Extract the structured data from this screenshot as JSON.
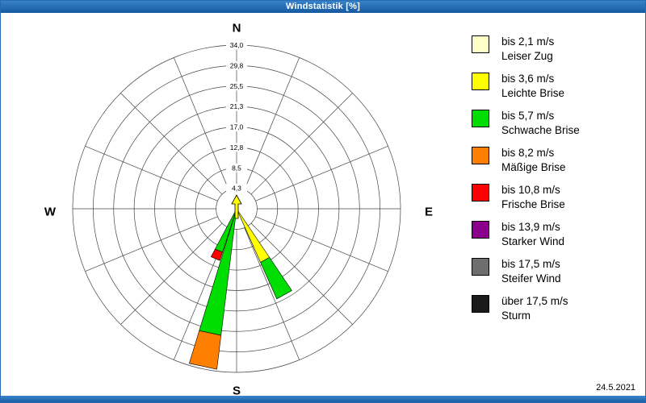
{
  "window": {
    "title": "Windstatistik [%]"
  },
  "date": "24.5.2021",
  "compass": {
    "north": "N",
    "east": "E",
    "south": "S",
    "west": "W"
  },
  "chart_data": {
    "type": "wind-rose",
    "title": "Windstatistik [%]",
    "unit": "%",
    "axis_max": 34.0,
    "ring_values": [
      4.3,
      8.5,
      12.8,
      17.0,
      21.3,
      25.5,
      29.8,
      34.0
    ],
    "ring_labels": [
      "4,3",
      "8,5",
      "12,8",
      "17,0",
      "21,3",
      "25,5",
      "29,8",
      "34,0"
    ],
    "grid_sectors": 16,
    "petal_half_width_deg": 5,
    "legend_position": "right",
    "speed_classes": [
      {
        "label": "bis 2,1 m/s",
        "name": "Leiser Zug",
        "color": "#ffffc8"
      },
      {
        "label": "bis 3,6 m/s",
        "name": "Leichte Brise",
        "color": "#ffff00"
      },
      {
        "label": "bis 5,7 m/s",
        "name": "Schwache Brise",
        "color": "#00dd00"
      },
      {
        "label": "bis 8,2 m/s",
        "name": "Mäßige Brise",
        "color": "#ff8000"
      },
      {
        "label": "bis 10,8 m/s",
        "name": "Frische Brise",
        "color": "#ff0000"
      },
      {
        "label": "bis 13,9 m/s",
        "name": "Starker Wind",
        "color": "#8a008a"
      },
      {
        "label": "bis 17,5 m/s",
        "name": "Steifer Wind",
        "color": "#6e6e6e"
      },
      {
        "label": "über 17,5 m/s",
        "name": "Sturm",
        "color": "#1a1a1a"
      }
    ],
    "petals": [
      {
        "direction_deg": 192,
        "segments": [
          {
            "speed_class": "bis 3,6 m/s",
            "from": 0,
            "to": 1.5,
            "color": "#ffff00"
          },
          {
            "speed_class": "bis 5,7 m/s",
            "from": 1.5,
            "to": 26.5,
            "color": "#00dd00"
          },
          {
            "speed_class": "bis 8,2 m/s",
            "from": 26.5,
            "to": 33.6,
            "color": "#ff8000"
          }
        ]
      },
      {
        "direction_deg": 151,
        "segments": [
          {
            "speed_class": "bis 3,6 m/s",
            "from": 0,
            "to": 12.2,
            "color": "#ffff00"
          },
          {
            "speed_class": "bis 5,7 m/s",
            "from": 12.2,
            "to": 20.5,
            "color": "#00dd00"
          }
        ]
      },
      {
        "direction_deg": 203,
        "segments": [
          {
            "speed_class": "bis 5,7 m/s",
            "from": 0,
            "to": 9.5,
            "color": "#00dd00"
          },
          {
            "speed_class": "bis 10,8 m/s",
            "from": 9.5,
            "to": 11.3,
            "color": "#ff0000"
          }
        ]
      }
    ],
    "center_arrow": {
      "direction_deg": 0,
      "color": "#ffff00"
    }
  }
}
